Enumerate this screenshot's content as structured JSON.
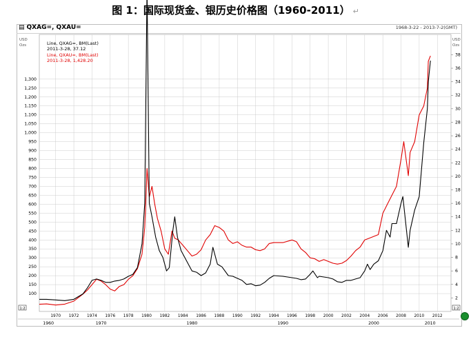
{
  "title": "图 1：国际现货金、银历史价格图（1960-2011）",
  "title_return_mark": "↵",
  "header": {
    "symbols": "QXAG=, QXAU=",
    "date_range": "1968-3-22 - 2013-7-2(GMT)"
  },
  "legend": {
    "silver_line": "Line, QXAG=, BM(Last)",
    "silver_value": "2011-3-28, 37.12",
    "gold_line": "Line, QXAU=, BM(Last)",
    "gold_value": "2011-3-28, 1,428.20"
  },
  "colors": {
    "gold": "#e00000",
    "silver": "#000000",
    "grid": "#cccccc",
    "axis_text": "#000000"
  },
  "chart_data": {
    "type": "line",
    "x_range": [
      1968.2,
      2013.5
    ],
    "x_ticks": [
      "1970",
      "1972",
      "1974",
      "1976",
      "1978",
      "1980",
      "1982",
      "1984",
      "1986",
      "1988",
      "1990",
      "1992",
      "1994",
      "1996",
      "1998",
      "2000",
      "2002",
      "2004",
      "2006",
      "2008",
      "2010",
      "2012"
    ],
    "x_tick_years": [
      1970,
      1972,
      1974,
      1976,
      1978,
      1980,
      1982,
      1984,
      1986,
      1988,
      1990,
      1992,
      1994,
      1996,
      1998,
      2000,
      2002,
      2004,
      2006,
      2008,
      2010,
      2012
    ],
    "decade_labels": [
      "1960",
      "1970",
      "1980",
      "1990",
      "2000",
      "2010"
    ],
    "decade_years": [
      1969.2,
      1975,
      1985,
      1995,
      2005,
      2011.2
    ],
    "left_axis": {
      "unit_top": "USD",
      "unit_bottom": "Ozs",
      "range": [
        0,
        1550
      ],
      "ticks": [
        100,
        150,
        200,
        250,
        300,
        350,
        400,
        450,
        500,
        550,
        600,
        650,
        700,
        750,
        800,
        850,
        900,
        950,
        1000,
        1050,
        1100,
        1150,
        1200,
        1250,
        1300
      ],
      "tick_labels": [
        "100",
        "150",
        "200",
        "250",
        "300",
        "350",
        "400",
        "450",
        "500",
        "550",
        "600",
        "650",
        "700",
        "750",
        "800",
        "850",
        "900",
        "950",
        "1,000",
        "1,050",
        "1,100",
        "1,150",
        "1,200",
        "1,250",
        "1,300"
      ],
      "badge": "1:2"
    },
    "right_axis": {
      "unit_top": "USD",
      "unit_bottom": "Ozs",
      "range": [
        0,
        41
      ],
      "ticks": [
        2,
        4,
        6,
        8,
        10,
        12,
        14,
        16,
        18,
        20,
        22,
        24,
        26,
        28,
        30,
        32,
        34,
        36,
        38
      ],
      "badge": "1:2"
    },
    "series": [
      {
        "name": "QXAU=",
        "axis": "left",
        "x": [
          1968.2,
          1969,
          1970,
          1971,
          1972,
          1973,
          1973.5,
          1974,
          1974.5,
          1975,
          1975.5,
          1976,
          1976.5,
          1977,
          1977.5,
          1978,
          1978.5,
          1979,
          1979.5,
          1979.8,
          1980.05,
          1980.3,
          1980.6,
          1980.9,
          1981.2,
          1981.6,
          1982,
          1982.4,
          1982.8,
          1983.1,
          1983.5,
          1984,
          1984.5,
          1985,
          1985.5,
          1986,
          1986.5,
          1987,
          1987.5,
          1988,
          1988.5,
          1989,
          1989.5,
          1990,
          1990.5,
          1991,
          1991.5,
          1992,
          1992.5,
          1993,
          1993.5,
          1994,
          1995,
          1996,
          1996.5,
          1997,
          1997.5,
          1998,
          1998.5,
          1999,
          1999.5,
          2000,
          2000.5,
          2001,
          2001.5,
          2002,
          2002.5,
          2003,
          2003.5,
          2004,
          2004.5,
          2005,
          2005.5,
          2006,
          2006.5,
          2007,
          2007.5,
          2008,
          2008.3,
          2008.8,
          2009,
          2009.5,
          2010,
          2010.5,
          2010.9,
          2011,
          2011.24
        ],
        "y": [
          40,
          42,
          36,
          41,
          58,
          97,
          120,
          150,
          180,
          170,
          150,
          125,
          115,
          140,
          150,
          180,
          200,
          240,
          320,
          470,
          800,
          640,
          700,
          600,
          520,
          450,
          350,
          320,
          450,
          410,
          400,
          370,
          340,
          310,
          320,
          345,
          400,
          430,
          480,
          470,
          450,
          400,
          380,
          390,
          370,
          360,
          360,
          345,
          340,
          350,
          380,
          385,
          385,
          400,
          390,
          350,
          330,
          300,
          295,
          280,
          290,
          280,
          270,
          265,
          270,
          285,
          310,
          340,
          360,
          400,
          410,
          420,
          430,
          550,
          600,
          650,
          700,
          850,
          950,
          760,
          890,
          950,
          1100,
          1150,
          1250,
          1400,
          1430
        ]
      },
      {
        "name": "QXAG=",
        "axis": "right",
        "x": [
          1968.2,
          1969,
          1970,
          1971,
          1972,
          1973,
          1973.5,
          1974,
          1974.5,
          1975,
          1975.5,
          1976,
          1976.5,
          1977,
          1977.5,
          1978,
          1978.5,
          1979,
          1979.5,
          1979.8,
          1980.05,
          1980.3,
          1980.6,
          1981,
          1981.4,
          1981.8,
          1982.2,
          1982.5,
          1982.9,
          1983.1,
          1983.4,
          1983.8,
          1984.2,
          1984.6,
          1985,
          1985.5,
          1986,
          1986.5,
          1987,
          1987.3,
          1987.8,
          1988.3,
          1989,
          1989.5,
          1990,
          1990.5,
          1991,
          1991.5,
          1992,
          1992.5,
          1993,
          1993.5,
          1994,
          1995,
          1996,
          1996.5,
          1997,
          1997.5,
          1998,
          1998.3,
          1998.8,
          1999,
          2000,
          2000.5,
          2001,
          2001.5,
          2002,
          2002.5,
          2003,
          2003.5,
          2004,
          2004.3,
          2004.6,
          2005,
          2005.5,
          2006,
          2006.4,
          2006.8,
          2007,
          2007.5,
          2008,
          2008.2,
          2008.8,
          2009,
          2009.5,
          2010,
          2010.5,
          2010.9,
          2011,
          2011.24
        ],
        "y": [
          1.8,
          1.8,
          1.7,
          1.6,
          1.8,
          2.6,
          3.5,
          4.6,
          4.8,
          4.6,
          4.3,
          4.3,
          4.5,
          4.6,
          4.8,
          5.2,
          5.5,
          6.5,
          10,
          16,
          48,
          16,
          14,
          11,
          9,
          8,
          6,
          6.5,
          12,
          14,
          11,
          9,
          8,
          7,
          6,
          5.8,
          5.3,
          5.7,
          7,
          9.5,
          7,
          6.6,
          5.3,
          5.2,
          4.9,
          4.6,
          4.0,
          4.1,
          3.8,
          3.9,
          4.3,
          4.9,
          5.3,
          5.2,
          5.0,
          4.9,
          4.7,
          4.8,
          5.5,
          6.0,
          5.0,
          5.2,
          5.0,
          4.8,
          4.4,
          4.3,
          4.6,
          4.6,
          4.8,
          5.0,
          6.0,
          7.0,
          6.2,
          7.0,
          7.5,
          9,
          12,
          11,
          13,
          13,
          16,
          17,
          9.5,
          12,
          15,
          17,
          25,
          30,
          34,
          37.12
        ]
      }
    ]
  }
}
